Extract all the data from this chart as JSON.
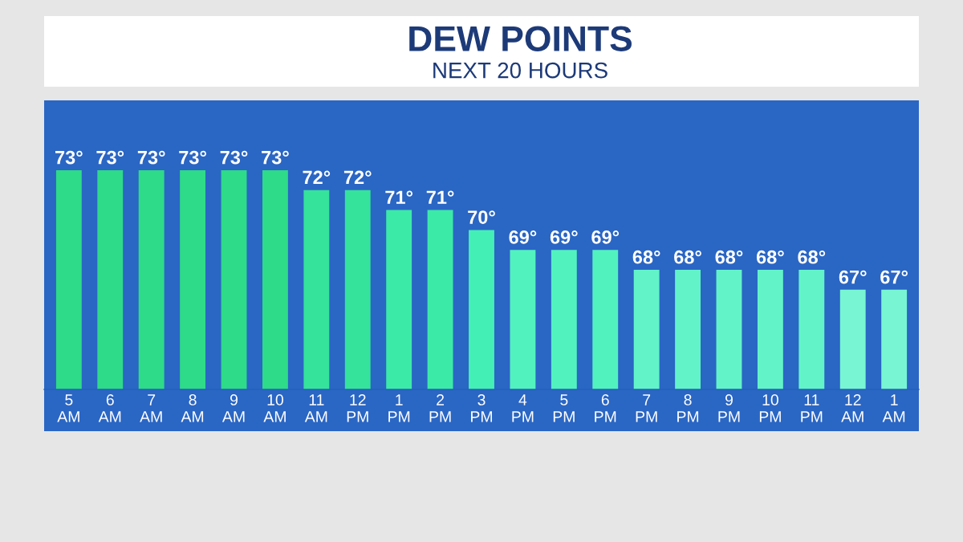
{
  "chart_data": {
    "type": "bar",
    "title": "DEW POINTS",
    "subtitle": "NEXT 20 HOURS",
    "categories": [
      "5\nAM",
      "6\nAM",
      "7\nAM",
      "8\nAM",
      "9\nAM",
      "10\nAM",
      "11\nAM",
      "12\nPM",
      "1\nPM",
      "2\nPM",
      "3\nPM",
      "4\nPM",
      "5\nPM",
      "6\nPM",
      "7\nPM",
      "8\nPM",
      "9\nPM",
      "10\nPM",
      "11\nPM",
      "12\nAM",
      "1\nAM"
    ],
    "values": [
      73,
      73,
      73,
      73,
      73,
      73,
      72,
      72,
      71,
      71,
      70,
      69,
      69,
      69,
      68,
      68,
      68,
      68,
      68,
      67,
      67
    ],
    "value_labels": [
      "73°",
      "73°",
      "73°",
      "73°",
      "73°",
      "73°",
      "72°",
      "72°",
      "71°",
      "71°",
      "70°",
      "69°",
      "69°",
      "69°",
      "68°",
      "68°",
      "68°",
      "68°",
      "68°",
      "67°",
      "67°"
    ],
    "colors": [
      "#2edb88",
      "#2edb88",
      "#2edb88",
      "#2edb88",
      "#2edb88",
      "#2edb88",
      "#35e39a",
      "#35e39a",
      "#3ceaa8",
      "#3ceaa8",
      "#44efb5",
      "#52f2bf",
      "#52f2bf",
      "#52f2bf",
      "#62f4c8",
      "#62f4c8",
      "#62f4c8",
      "#62f4c8",
      "#62f4c8",
      "#78f5d3",
      "#78f5d3"
    ],
    "ylim": [
      62,
      76.5
    ],
    "tick_labels": "x"
  }
}
